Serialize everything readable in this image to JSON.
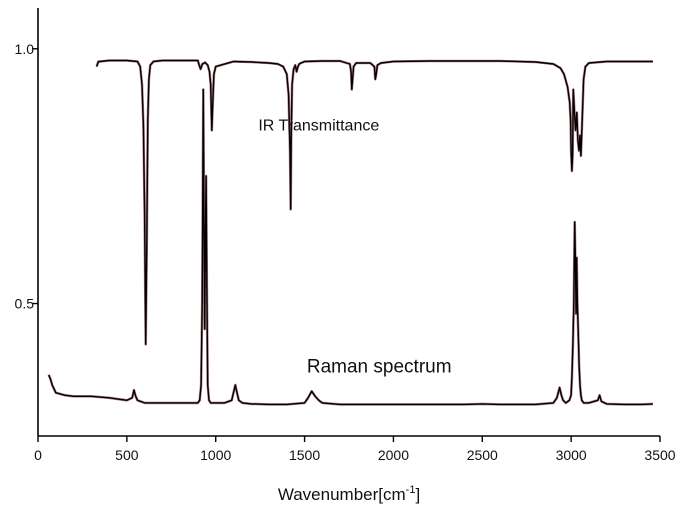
{
  "chart_data": {
    "type": "line",
    "title": "",
    "xlabel": "Wavenumber[cm",
    "xlabel_sup": "-1",
    "xlabel_tail": "]",
    "ylabel": "",
    "xlim": [
      0,
      3500
    ],
    "ylim": [
      0.24,
      1.08
    ],
    "x_ticks": [
      0,
      500,
      1000,
      1500,
      2000,
      2500,
      3000,
      3500
    ],
    "y_ticks": [
      0.5,
      1.0
    ],
    "y_tick_labels": [
      "0.5",
      "1.0"
    ],
    "grid": false,
    "legend": "none",
    "annotations": [
      {
        "text": "IR Transmittance",
        "x": 1580,
        "y": 0.84
      },
      {
        "text": "Raman spectrum",
        "x": 1920,
        "y": 0.365
      }
    ],
    "series": [
      {
        "color": "#000000",
        "x": [
          330,
          340,
          350,
          400,
          500,
          560,
          575,
          585,
          593,
          600,
          606,
          612,
          618,
          624,
          632,
          650,
          700,
          800,
          900,
          905,
          915,
          925,
          940,
          955,
          965,
          972,
          978,
          984,
          990,
          1000,
          1100,
          1200,
          1300,
          1350,
          1380,
          1400,
          1410,
          1418,
          1422,
          1425,
          1430,
          1438,
          1448,
          1455,
          1462,
          1470,
          1480,
          1500,
          1600,
          1700,
          1755,
          1762,
          1766,
          1770,
          1776,
          1790,
          1870,
          1893,
          1898,
          1903,
          1910,
          1930,
          2000,
          2200,
          2400,
          2600,
          2800,
          2900,
          2940,
          2960,
          2980,
          2992,
          2997,
          3000,
          3004,
          3008,
          3012,
          3018,
          3025,
          3032,
          3038,
          3044,
          3050,
          3055,
          3062,
          3070,
          3080,
          3100,
          3200,
          3300,
          3400,
          3460
        ],
        "y": [
          0.965,
          0.975,
          0.975,
          0.977,
          0.977,
          0.975,
          0.965,
          0.93,
          0.85,
          0.68,
          0.42,
          0.62,
          0.86,
          0.94,
          0.968,
          0.975,
          0.977,
          0.977,
          0.977,
          0.97,
          0.96,
          0.97,
          0.973,
          0.968,
          0.955,
          0.93,
          0.84,
          0.9,
          0.95,
          0.965,
          0.975,
          0.974,
          0.972,
          0.97,
          0.965,
          0.95,
          0.91,
          0.8,
          0.685,
          0.82,
          0.93,
          0.96,
          0.968,
          0.955,
          0.964,
          0.97,
          0.972,
          0.975,
          0.976,
          0.976,
          0.97,
          0.955,
          0.92,
          0.94,
          0.965,
          0.972,
          0.972,
          0.965,
          0.94,
          0.95,
          0.968,
          0.972,
          0.975,
          0.976,
          0.976,
          0.976,
          0.974,
          0.97,
          0.962,
          0.95,
          0.925,
          0.895,
          0.86,
          0.8,
          0.76,
          0.79,
          0.92,
          0.88,
          0.84,
          0.875,
          0.82,
          0.8,
          0.83,
          0.79,
          0.86,
          0.94,
          0.965,
          0.972,
          0.975,
          0.975,
          0.975,
          0.975
        ]
      },
      {
        "color": "#000000",
        "x": [
          60,
          70,
          80,
          100,
          150,
          200,
          300,
          400,
          500,
          530,
          540,
          550,
          560,
          600,
          700,
          800,
          900,
          910,
          918,
          924,
          930,
          934,
          938,
          942,
          946,
          950,
          955,
          962,
          972,
          1000,
          1050,
          1090,
          1110,
          1120,
          1130,
          1150,
          1200,
          1300,
          1400,
          1500,
          1520,
          1540,
          1560,
          1580,
          1600,
          1700,
          1800,
          1900,
          2000,
          2200,
          2400,
          2500,
          2600,
          2800,
          2900,
          2920,
          2935,
          2945,
          2955,
          2970,
          2990,
          3000,
          3005,
          3010,
          3015,
          3020,
          3025,
          3028,
          3031,
          3035,
          3040,
          3045,
          3050,
          3055,
          3060,
          3070,
          3100,
          3150,
          3160,
          3170,
          3200,
          3300,
          3400,
          3460
        ],
        "y": [
          0.36,
          0.352,
          0.34,
          0.325,
          0.32,
          0.318,
          0.318,
          0.315,
          0.31,
          0.315,
          0.33,
          0.318,
          0.31,
          0.305,
          0.305,
          0.305,
          0.305,
          0.31,
          0.34,
          0.5,
          0.92,
          0.66,
          0.45,
          0.62,
          0.75,
          0.55,
          0.34,
          0.31,
          0.305,
          0.305,
          0.305,
          0.31,
          0.34,
          0.325,
          0.31,
          0.305,
          0.303,
          0.302,
          0.302,
          0.305,
          0.315,
          0.328,
          0.318,
          0.31,
          0.305,
          0.302,
          0.302,
          0.302,
          0.302,
          0.302,
          0.302,
          0.303,
          0.302,
          0.302,
          0.305,
          0.315,
          0.335,
          0.32,
          0.31,
          0.305,
          0.31,
          0.32,
          0.36,
          0.42,
          0.5,
          0.66,
          0.56,
          0.48,
          0.59,
          0.5,
          0.44,
          0.38,
          0.34,
          0.32,
          0.31,
          0.305,
          0.305,
          0.31,
          0.32,
          0.308,
          0.303,
          0.302,
          0.302,
          0.303
        ]
      }
    ]
  }
}
